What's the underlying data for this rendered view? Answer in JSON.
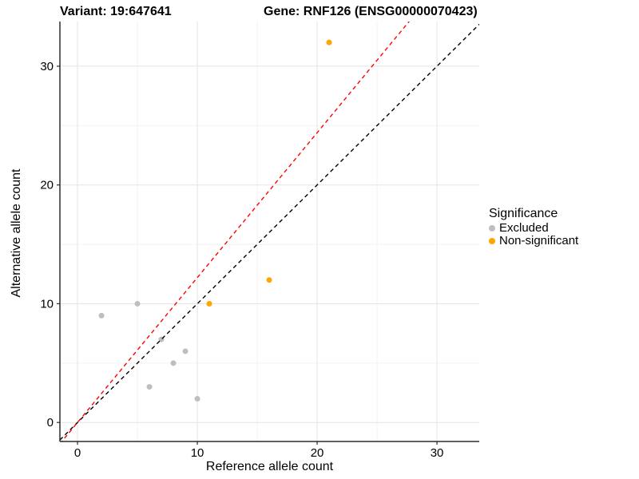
{
  "header": {
    "title_left": "Variant: 19:647641",
    "title_right": "Gene: RNF126 (ENSG00000070423)"
  },
  "chart_data": {
    "type": "scatter",
    "xlabel": "Reference allele count",
    "ylabel": "Alternative allele count",
    "xlim": [
      -1.47,
      33.53
    ],
    "ylim": [
      -1.6,
      33.76
    ],
    "x_major_ticks": [
      0,
      10,
      20,
      30
    ],
    "y_major_ticks": [
      0,
      10,
      20,
      30
    ],
    "x_minor_gridlines": [
      5,
      15,
      25
    ],
    "y_minor_gridlines": [
      5,
      15,
      25
    ],
    "grid": true,
    "legend_position": "right",
    "series": [
      {
        "name": "Excluded",
        "color": "#BEBEBE",
        "points": [
          [
            2,
            9
          ],
          [
            5,
            10
          ],
          [
            6,
            3
          ],
          [
            7,
            7
          ],
          [
            8,
            5
          ],
          [
            9,
            6
          ],
          [
            10,
            2
          ]
        ]
      },
      {
        "name": "Non-significant",
        "color": "#FFA500",
        "points": [
          [
            11,
            10
          ],
          [
            16,
            12
          ],
          [
            21,
            32
          ]
        ]
      }
    ],
    "reference_lines": [
      {
        "name": "identity-line",
        "slope": 1,
        "intercept": 0,
        "color": "#000000",
        "style": "dashed"
      },
      {
        "name": "fitted-ratio-line",
        "slope": 1.22,
        "intercept": 0,
        "color": "#FF0000",
        "style": "dashed"
      }
    ],
    "legend": {
      "title": "Significance",
      "items": [
        {
          "label": "Excluded",
          "color": "#BEBEBE"
        },
        {
          "label": "Non-significant",
          "color": "#FFA500"
        }
      ]
    },
    "colors": {
      "major_grid": "#E4E4E4",
      "minor_grid": "#F2F2F2",
      "axis_line": "#2B2B2B",
      "tick_text": "#000000"
    }
  }
}
